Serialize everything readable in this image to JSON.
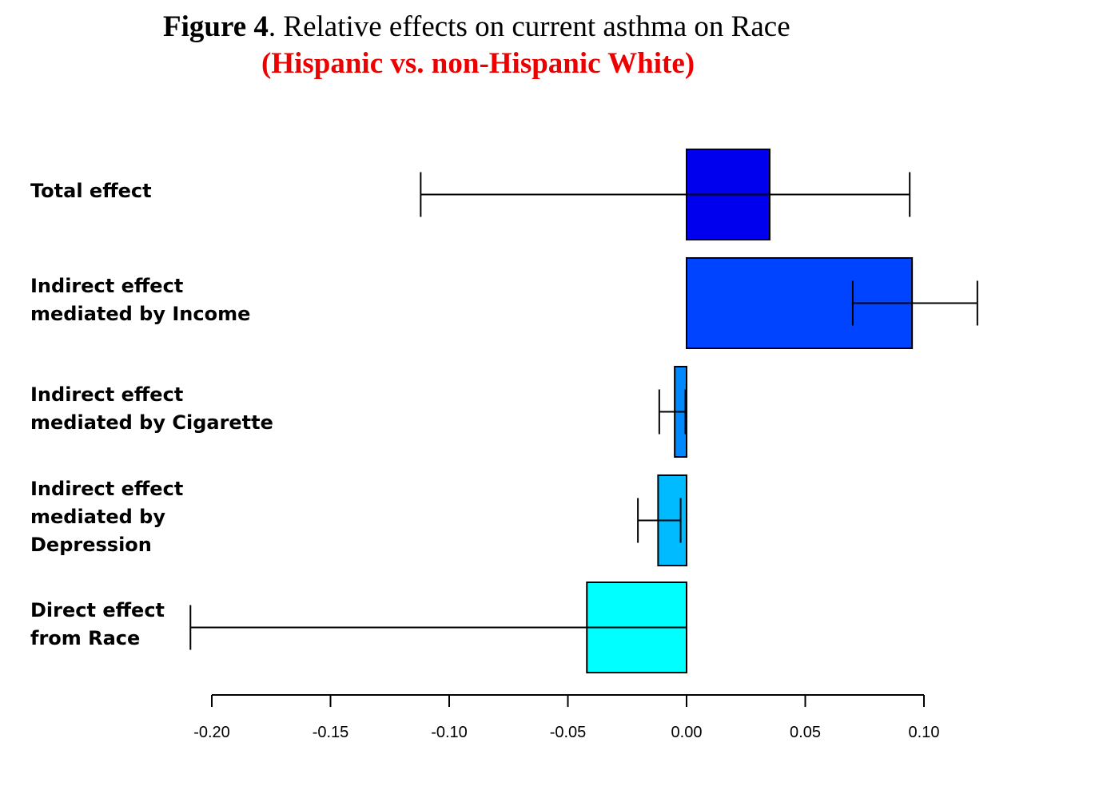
{
  "title": {
    "figure_label": "Figure 4",
    "text": ". Relative effects on current asthma on Race",
    "subtitle": "(Hispanic vs. non-Hispanic White)"
  },
  "chart_data": {
    "type": "bar",
    "orientation": "horizontal",
    "title": "Figure 4. Relative effects on current asthma on Race",
    "subtitle": "(Hispanic vs. non-Hispanic White)",
    "xlabel": "",
    "ylabel": "",
    "xlim": [
      -0.2,
      0.1
    ],
    "grid": false,
    "legend": "none",
    "ticks": [
      {
        "value": -0.2,
        "label": "-0.20"
      },
      {
        "value": -0.15,
        "label": "-0.15"
      },
      {
        "value": -0.1,
        "label": "-0.10"
      },
      {
        "value": -0.05,
        "label": "-0.05"
      },
      {
        "value": 0.0,
        "label": "0.00"
      },
      {
        "value": 0.05,
        "label": "0.05"
      },
      {
        "value": 0.1,
        "label": "0.10"
      }
    ],
    "categories": [
      {
        "lines": [
          "Total effect"
        ]
      },
      {
        "lines": [
          "Indirect effect",
          "mediated by Income"
        ]
      },
      {
        "lines": [
          "Indirect effect",
          "mediated by Cigarette"
        ]
      },
      {
        "lines": [
          "Indirect effect",
          "mediated by",
          "Depression"
        ]
      },
      {
        "lines": [
          "Direct effect",
          "from Race"
        ]
      }
    ],
    "values": [
      0.035,
      0.095,
      -0.005,
      -0.012,
      -0.042
    ],
    "ci_lower": [
      -0.112,
      0.07,
      -0.0115,
      -0.0205,
      -0.209
    ],
    "ci_upper": [
      0.094,
      0.1225,
      -0.0005,
      -0.0025,
      0.0
    ],
    "colors": [
      "#0000ee",
      "#0044ff",
      "#0088ff",
      "#00bbff",
      "#00ffff"
    ]
  }
}
